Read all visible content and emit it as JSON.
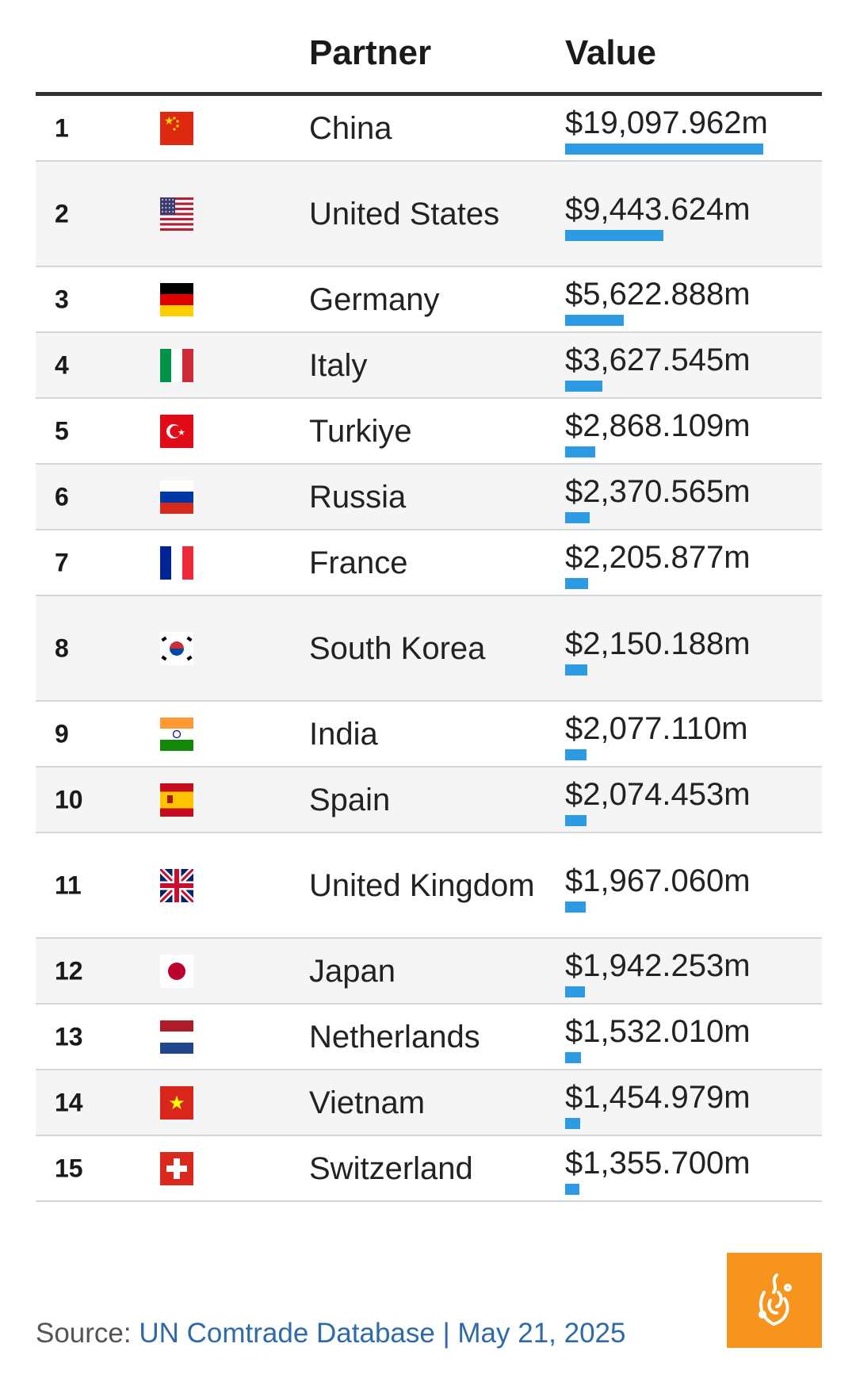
{
  "header": {
    "partner": "Partner",
    "value": "Value"
  },
  "chart_data": {
    "type": "bar",
    "columns": [
      "",
      "",
      "Partner",
      "Value"
    ],
    "max_value": 19097.962,
    "rows": [
      {
        "rank": "1",
        "partner": "China",
        "value_label": "$19,097.962m",
        "value": 19097.962,
        "flag": "china-flag-icon",
        "tall": false
      },
      {
        "rank": "2",
        "partner": "United States",
        "value_label": "$9,443.624m",
        "value": 9443.624,
        "flag": "united-states-flag-icon",
        "tall": true
      },
      {
        "rank": "3",
        "partner": "Germany",
        "value_label": "$5,622.888m",
        "value": 5622.888,
        "flag": "germany-flag-icon",
        "tall": false
      },
      {
        "rank": "4",
        "partner": "Italy",
        "value_label": "$3,627.545m",
        "value": 3627.545,
        "flag": "italy-flag-icon",
        "tall": false
      },
      {
        "rank": "5",
        "partner": "Turkiye",
        "value_label": "$2,868.109m",
        "value": 2868.109,
        "flag": "turkiye-flag-icon",
        "tall": false
      },
      {
        "rank": "6",
        "partner": "Russia",
        "value_label": "$2,370.565m",
        "value": 2370.565,
        "flag": "russia-flag-icon",
        "tall": false
      },
      {
        "rank": "7",
        "partner": "France",
        "value_label": "$2,205.877m",
        "value": 2205.877,
        "flag": "france-flag-icon",
        "tall": false
      },
      {
        "rank": "8",
        "partner": "South Korea",
        "value_label": "$2,150.188m",
        "value": 2150.188,
        "flag": "south-korea-flag-icon",
        "tall": true
      },
      {
        "rank": "9",
        "partner": "India",
        "value_label": "$2,077.110m",
        "value": 2077.11,
        "flag": "india-flag-icon",
        "tall": false
      },
      {
        "rank": "10",
        "partner": "Spain",
        "value_label": "$2,074.453m",
        "value": 2074.453,
        "flag": "spain-flag-icon",
        "tall": false
      },
      {
        "rank": "11",
        "partner": "United Kingdom",
        "value_label": "$1,967.060m",
        "value": 1967.06,
        "flag": "united-kingdom-flag-icon",
        "tall": true
      },
      {
        "rank": "12",
        "partner": "Japan",
        "value_label": "$1,942.253m",
        "value": 1942.253,
        "flag": "japan-flag-icon",
        "tall": false
      },
      {
        "rank": "13",
        "partner": "Netherlands",
        "value_label": "$1,532.010m",
        "value": 1532.01,
        "flag": "netherlands-flag-icon",
        "tall": false
      },
      {
        "rank": "14",
        "partner": "Vietnam",
        "value_label": "$1,454.979m",
        "value": 1454.979,
        "flag": "vietnam-flag-icon",
        "tall": false
      },
      {
        "rank": "15",
        "partner": "Switzerland",
        "value_label": "$1,355.700m",
        "value": 1355.7,
        "flag": "switzerland-flag-icon",
        "tall": false
      }
    ],
    "bar_color": "#2d9be3"
  },
  "footer": {
    "source_prefix": "Source: ",
    "source_text": "UN Comtrade Database | May 21, 2025",
    "logo": "al-jazeera-logo-icon",
    "logo_color": "#f7941d"
  }
}
